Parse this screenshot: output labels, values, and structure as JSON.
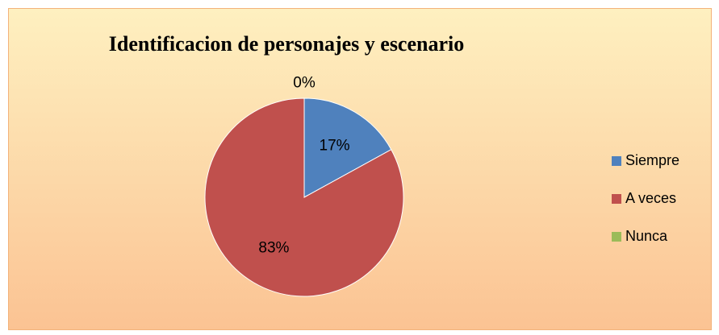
{
  "chart_data": {
    "type": "pie",
    "title": "Identificacion de personajes y escenario",
    "categories": [
      "Siempre",
      "A veces",
      "Nunca"
    ],
    "values": [
      17,
      83,
      0
    ],
    "value_labels": [
      "17%",
      "83%",
      "0%"
    ],
    "colors": [
      "#4f81bd",
      "#c0504d",
      "#9bbb59"
    ],
    "legend": "right"
  }
}
